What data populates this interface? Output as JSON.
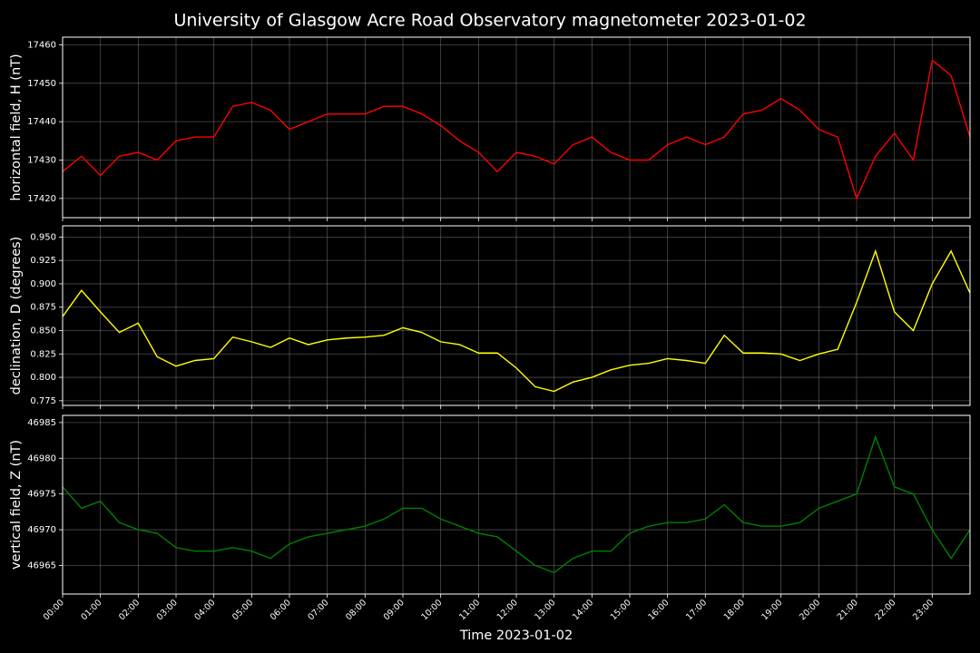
{
  "title": "University of Glasgow Acre Road Observatory magnetometer 2023-01-02",
  "chart_data": [
    {
      "type": "line",
      "ylabel": "horizontal field, H (nT)",
      "color": "#ff0000",
      "grid": true,
      "x": [
        0,
        0.5,
        1,
        1.5,
        2,
        2.5,
        3,
        3.5,
        4,
        4.5,
        5,
        5.5,
        6,
        6.5,
        7,
        7.5,
        8,
        8.5,
        9,
        9.5,
        10,
        10.5,
        11,
        11.5,
        12,
        12.5,
        13,
        13.5,
        14,
        14.5,
        15,
        15.5,
        16,
        16.5,
        17,
        17.5,
        18,
        18.5,
        19,
        19.5,
        20,
        20.5,
        21,
        21.5,
        22,
        22.5,
        23,
        23.5,
        24
      ],
      "values": [
        17427,
        17431,
        17426,
        17431,
        17432,
        17430,
        17435,
        17436,
        17436,
        17444,
        17445,
        17443,
        17438,
        17440,
        17442,
        17442,
        17442,
        17444,
        17444,
        17442,
        17439,
        17435,
        17432,
        17427,
        17432,
        17431,
        17429,
        17434,
        17436,
        17432,
        17430,
        17430,
        17434,
        17436,
        17434,
        17436,
        17442,
        17443,
        17446,
        17443,
        17438,
        17436,
        17420,
        17431,
        17437,
        17430,
        17456,
        17452,
        17436
      ],
      "xlim": [
        0,
        24
      ],
      "ylim": [
        17415,
        17462
      ],
      "yticks": [
        17420,
        17430,
        17440,
        17450,
        17460
      ]
    },
    {
      "type": "line",
      "ylabel": "declination, D (degrees)",
      "color": "#ffff00",
      "grid": true,
      "x": [
        0,
        0.5,
        1,
        1.5,
        2,
        2.5,
        3,
        3.5,
        4,
        4.5,
        5,
        5.5,
        6,
        6.5,
        7,
        7.5,
        8,
        8.5,
        9,
        9.5,
        10,
        10.5,
        11,
        11.5,
        12,
        12.5,
        13,
        13.5,
        14,
        14.5,
        15,
        15.5,
        16,
        16.5,
        17,
        17.5,
        18,
        18.5,
        19,
        19.5,
        20,
        20.5,
        21,
        21.5,
        22,
        22.5,
        23,
        23.5,
        24
      ],
      "values": [
        0.865,
        0.893,
        0.87,
        0.848,
        0.858,
        0.822,
        0.812,
        0.818,
        0.82,
        0.843,
        0.838,
        0.832,
        0.842,
        0.835,
        0.84,
        0.842,
        0.843,
        0.845,
        0.853,
        0.848,
        0.838,
        0.835,
        0.826,
        0.826,
        0.81,
        0.79,
        0.785,
        0.795,
        0.8,
        0.808,
        0.813,
        0.815,
        0.82,
        0.818,
        0.815,
        0.845,
        0.826,
        0.826,
        0.825,
        0.818,
        0.825,
        0.83,
        0.88,
        0.935,
        0.87,
        0.85,
        0.9,
        0.935,
        0.89
      ],
      "xlim": [
        0,
        24
      ],
      "ylim": [
        0.77,
        0.962
      ],
      "yticks": [
        0.775,
        {
          "value": 0.8,
          "label": "0.800"
        },
        0.825,
        {
          "value": 0.85,
          "label": "0.850"
        },
        0.875,
        {
          "value": 0.9,
          "label": "0.900"
        },
        0.925,
        {
          "value": 0.95,
          "label": "0.950"
        }
      ]
    },
    {
      "type": "line",
      "ylabel": "vertical field, Z (nT)",
      "xlabel": "Time 2023-01-02",
      "color": "#008000",
      "grid": true,
      "x": [
        0,
        0.5,
        1,
        1.5,
        2,
        2.5,
        3,
        3.5,
        4,
        4.5,
        5,
        5.5,
        6,
        6.5,
        7,
        7.5,
        8,
        8.5,
        9,
        9.5,
        10,
        10.5,
        11,
        11.5,
        12,
        12.5,
        13,
        13.5,
        14,
        14.5,
        15,
        15.5,
        16,
        16.5,
        17,
        17.5,
        18,
        18.5,
        19,
        19.5,
        20,
        20.5,
        21,
        21.5,
        22,
        22.5,
        23,
        23.5,
        24
      ],
      "values": [
        46976,
        46973,
        46974,
        46971,
        46970,
        46969.5,
        46967.5,
        46967,
        46967,
        46967.5,
        46967,
        46966,
        46968,
        46969,
        46969.5,
        46970,
        46970.5,
        46971.5,
        46973,
        46973,
        46971.5,
        46970.5,
        46969.5,
        46969,
        46967,
        46965,
        46964,
        46966,
        46967,
        46967,
        46969.5,
        46970.5,
        46971,
        46971,
        46971.5,
        46973.5,
        46971,
        46970.5,
        46970.5,
        46971,
        46973,
        46974,
        46975,
        46983,
        46976,
        46975,
        46970,
        46966,
        46970
      ],
      "xlim": [
        0,
        24
      ],
      "ylim": [
        46961,
        46986
      ],
      "yticks": [
        46965,
        46970,
        46975,
        46980,
        46985
      ],
      "xticks": [
        {
          "value": 0,
          "label": "00:00"
        },
        {
          "value": 1,
          "label": "01:00"
        },
        {
          "value": 2,
          "label": "02:00"
        },
        {
          "value": 3,
          "label": "03:00"
        },
        {
          "value": 4,
          "label": "04:00"
        },
        {
          "value": 5,
          "label": "05:00"
        },
        {
          "value": 6,
          "label": "06:00"
        },
        {
          "value": 7,
          "label": "07:00"
        },
        {
          "value": 8,
          "label": "08:00"
        },
        {
          "value": 9,
          "label": "09:00"
        },
        {
          "value": 10,
          "label": "10:00"
        },
        {
          "value": 11,
          "label": "11:00"
        },
        {
          "value": 12,
          "label": "12:00"
        },
        {
          "value": 13,
          "label": "13:00"
        },
        {
          "value": 14,
          "label": "14:00"
        },
        {
          "value": 15,
          "label": "15:00"
        },
        {
          "value": 16,
          "label": "16:00"
        },
        {
          "value": 17,
          "label": "17:00"
        },
        {
          "value": 18,
          "label": "18:00"
        },
        {
          "value": 19,
          "label": "19:00"
        },
        {
          "value": 20,
          "label": "20:00"
        },
        {
          "value": 21,
          "label": "21:00"
        },
        {
          "value": 22,
          "label": "22:00"
        },
        {
          "value": 23,
          "label": "23:00"
        }
      ]
    }
  ]
}
